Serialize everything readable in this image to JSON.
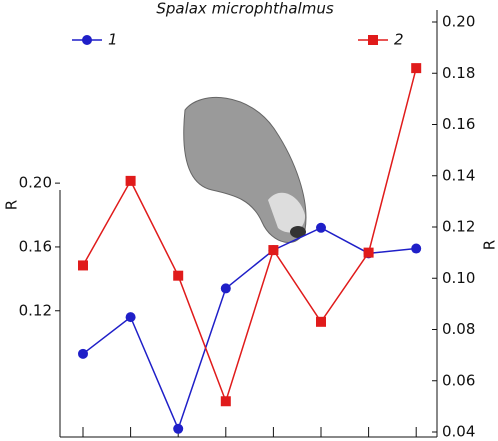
{
  "chart_data": {
    "type": "line",
    "title": "Spalax microphthalmus",
    "categories": [
      null,
      null,
      null,
      null,
      null,
      null,
      null,
      null
    ],
    "series": [
      {
        "name": "1",
        "color": "#1f1fc8",
        "marker": "circle",
        "values": [
          0.093,
          0.116,
          0.046,
          0.134,
          0.158,
          0.172,
          0.156,
          0.159
        ]
      },
      {
        "name": "2",
        "color": "#e01b1b",
        "marker": "square",
        "axis": "y2",
        "values": [
          0.105,
          0.138,
          0.101,
          0.052,
          0.111,
          0.083,
          0.11,
          0.182
        ]
      }
    ],
    "ylabel": "R",
    "y2label": "R",
    "ylim": [
      0.044,
      0.301
    ],
    "yticks": [
      0.12,
      0.16,
      {
        "value": 0.2,
        "label": "0.20"
      }
    ],
    "y2lim": [
      0.04,
      0.2
    ],
    "y2ticks": [
      {
        "value": 0.2,
        "label": "0.20"
      },
      0.18,
      0.16,
      0.14,
      0.12,
      {
        "value": 0.1,
        "label": "0.10"
      },
      0.08,
      0.06,
      0.04
    ],
    "grid": false,
    "legend": "top"
  }
}
